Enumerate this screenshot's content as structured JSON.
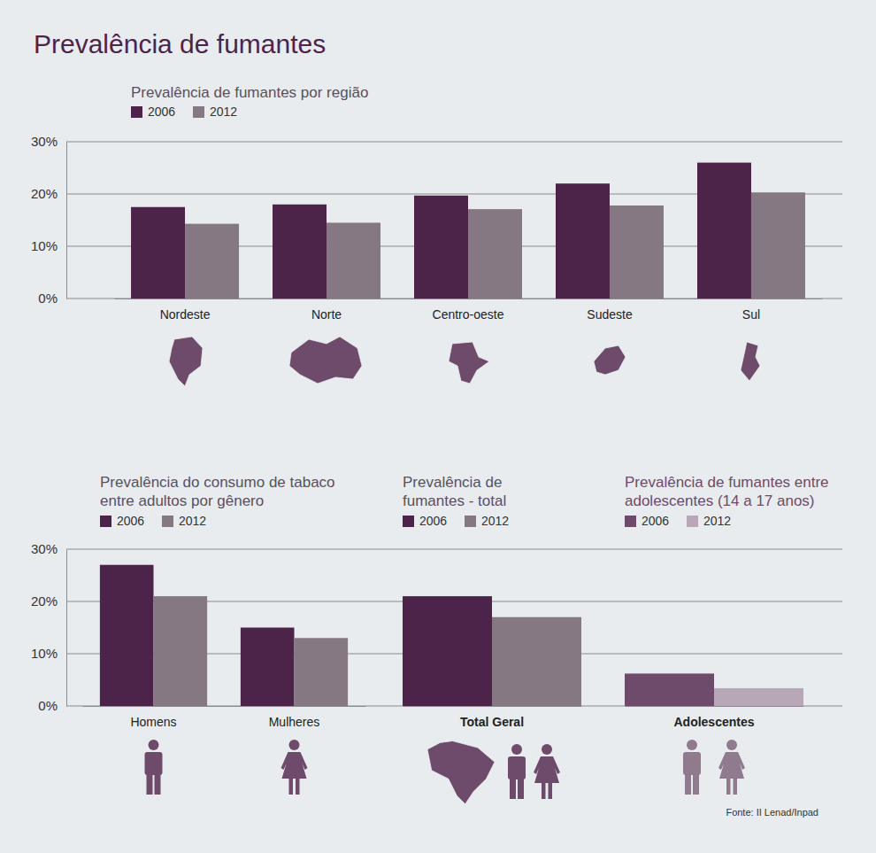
{
  "title": "Prevalência de fumantes",
  "source": "Fonte: II Lenad/Inpad",
  "chart_data": [
    {
      "type": "bar",
      "title": "Prevalência de fumantes por região",
      "categories": [
        "Nordeste",
        "Norte",
        "Centro-oeste",
        "Sudeste",
        "Sul"
      ],
      "series": [
        {
          "name": "2006",
          "color": "#4d2449",
          "values": [
            17.5,
            18,
            19.7,
            22,
            26
          ]
        },
        {
          "name": "2012",
          "color": "#857883",
          "values": [
            14.3,
            14.5,
            17.1,
            17.8,
            20.3
          ]
        }
      ],
      "ylim": [
        0,
        30
      ],
      "yticks": [
        {
          "value": 0,
          "label": "0%"
        },
        {
          "value": 10,
          "label": "10%"
        },
        {
          "value": 20,
          "label": "20%"
        },
        {
          "value": 30,
          "label": "30%"
        }
      ],
      "grid": true
    },
    {
      "type": "bar",
      "title": "Prevalência do consumo de tabaco entre adultos por gênero",
      "categories": [
        "Homens",
        "Mulheres"
      ],
      "series": [
        {
          "name": "2006",
          "color": "#4d2449",
          "values": [
            27,
            15
          ]
        },
        {
          "name": "2012",
          "color": "#857883",
          "values": [
            21,
            13
          ]
        }
      ],
      "ylim": [
        0,
        30
      ],
      "yticks": [
        {
          "value": 0,
          "label": "0%"
        },
        {
          "value": 10,
          "label": "10%"
        },
        {
          "value": 20,
          "label": "20%"
        },
        {
          "value": 30,
          "label": "30%"
        }
      ],
      "grid": true
    },
    {
      "type": "bar",
      "title": "Prevalência de fumantes - total",
      "categories": [
        "Total Geral"
      ],
      "series": [
        {
          "name": "2006",
          "color": "#4d2449",
          "values": [
            21
          ]
        },
        {
          "name": "2012",
          "color": "#857883",
          "values": [
            17
          ]
        }
      ],
      "ylim": [
        0,
        30
      ],
      "yticks": [
        0,
        10,
        20,
        30
      ],
      "tick_labels": "x",
      "grid": true
    },
    {
      "type": "bar",
      "title": "Prevalência de fumantes entre adolescentes (14 a 17 anos)",
      "categories": [
        "Adolescentes"
      ],
      "series": [
        {
          "name": "2006",
          "color": "#6e4a6b",
          "values": [
            6.2
          ]
        },
        {
          "name": "2012",
          "color": "#b8a7b7",
          "values": [
            3.4
          ]
        }
      ],
      "ylim": [
        0,
        30
      ],
      "yticks": [
        0,
        10,
        20,
        30
      ],
      "tick_labels": "x",
      "grid": true
    }
  ]
}
